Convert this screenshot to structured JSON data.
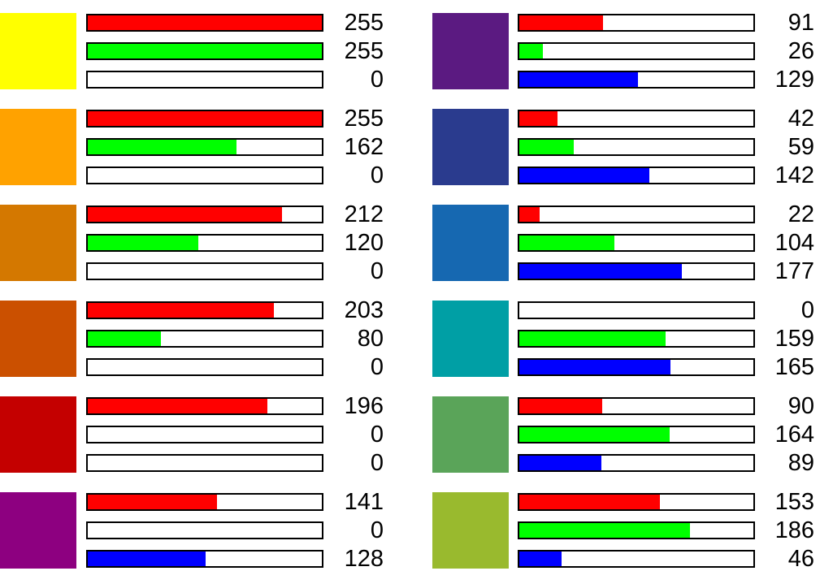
{
  "chart_data": {
    "type": "bar",
    "channel_colors": {
      "r": "#ff0000",
      "g": "#00ff00",
      "b": "#0000ff"
    },
    "channel_max": 255,
    "columns": [
      [
        {
          "swatch": "#ffff00",
          "r": 255,
          "g": 255,
          "b": 0
        },
        {
          "swatch": "#ffa200",
          "r": 255,
          "g": 162,
          "b": 0
        },
        {
          "swatch": "#d47800",
          "r": 212,
          "g": 120,
          "b": 0
        },
        {
          "swatch": "#cb5000",
          "r": 203,
          "g": 80,
          "b": 0
        },
        {
          "swatch": "#c40000",
          "r": 196,
          "g": 0,
          "b": 0
        },
        {
          "swatch": "#8d0080",
          "r": 141,
          "g": 0,
          "b": 128
        }
      ],
      [
        {
          "swatch": "#5b1a81",
          "r": 91,
          "g": 26,
          "b": 129
        },
        {
          "swatch": "#2a3b8e",
          "r": 42,
          "g": 59,
          "b": 142
        },
        {
          "swatch": "#1668b1",
          "r": 22,
          "g": 104,
          "b": 177
        },
        {
          "swatch": "#009fa5",
          "r": 0,
          "g": 159,
          "b": 165
        },
        {
          "swatch": "#5aa459",
          "r": 90,
          "g": 164,
          "b": 89
        },
        {
          "swatch": "#99ba2e",
          "r": 153,
          "g": 186,
          "b": 46
        }
      ]
    ]
  }
}
